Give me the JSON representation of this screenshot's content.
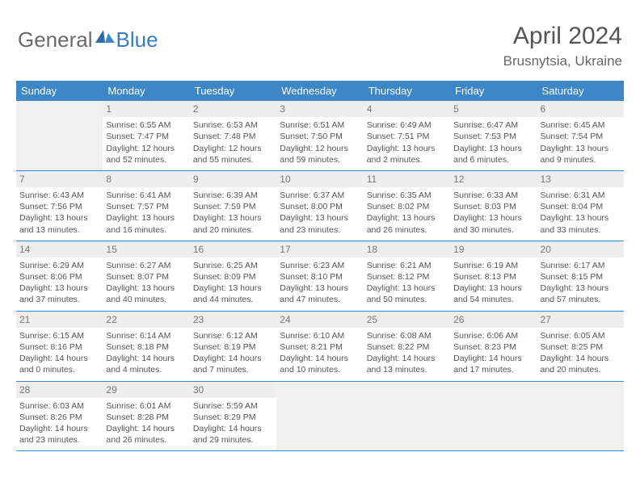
{
  "logo": {
    "general": "General",
    "blue": "Blue"
  },
  "title": "April 2024",
  "location": "Brusnytsia, Ukraine",
  "colors": {
    "header_bg": "#3d87c7",
    "header_text": "#ffffff",
    "daynum_bg": "#eeeeee",
    "empty_bg": "#f0f0f0",
    "border": "#3d87c7",
    "text": "#555555",
    "logo_general": "#6a6a6a",
    "logo_blue": "#3b7bbf"
  },
  "day_names": [
    "Sunday",
    "Monday",
    "Tuesday",
    "Wednesday",
    "Thursday",
    "Friday",
    "Saturday"
  ],
  "weeks": [
    [
      {
        "empty": true
      },
      {
        "num": "1",
        "sunrise": "Sunrise: 6:55 AM",
        "sunset": "Sunset: 7:47 PM",
        "day1": "Daylight: 12 hours",
        "day2": "and 52 minutes."
      },
      {
        "num": "2",
        "sunrise": "Sunrise: 6:53 AM",
        "sunset": "Sunset: 7:48 PM",
        "day1": "Daylight: 12 hours",
        "day2": "and 55 minutes."
      },
      {
        "num": "3",
        "sunrise": "Sunrise: 6:51 AM",
        "sunset": "Sunset: 7:50 PM",
        "day1": "Daylight: 12 hours",
        "day2": "and 59 minutes."
      },
      {
        "num": "4",
        "sunrise": "Sunrise: 6:49 AM",
        "sunset": "Sunset: 7:51 PM",
        "day1": "Daylight: 13 hours",
        "day2": "and 2 minutes."
      },
      {
        "num": "5",
        "sunrise": "Sunrise: 6:47 AM",
        "sunset": "Sunset: 7:53 PM",
        "day1": "Daylight: 13 hours",
        "day2": "and 6 minutes."
      },
      {
        "num": "6",
        "sunrise": "Sunrise: 6:45 AM",
        "sunset": "Sunset: 7:54 PM",
        "day1": "Daylight: 13 hours",
        "day2": "and 9 minutes."
      }
    ],
    [
      {
        "num": "7",
        "sunrise": "Sunrise: 6:43 AM",
        "sunset": "Sunset: 7:56 PM",
        "day1": "Daylight: 13 hours",
        "day2": "and 13 minutes."
      },
      {
        "num": "8",
        "sunrise": "Sunrise: 6:41 AM",
        "sunset": "Sunset: 7:57 PM",
        "day1": "Daylight: 13 hours",
        "day2": "and 16 minutes."
      },
      {
        "num": "9",
        "sunrise": "Sunrise: 6:39 AM",
        "sunset": "Sunset: 7:59 PM",
        "day1": "Daylight: 13 hours",
        "day2": "and 20 minutes."
      },
      {
        "num": "10",
        "sunrise": "Sunrise: 6:37 AM",
        "sunset": "Sunset: 8:00 PM",
        "day1": "Daylight: 13 hours",
        "day2": "and 23 minutes."
      },
      {
        "num": "11",
        "sunrise": "Sunrise: 6:35 AM",
        "sunset": "Sunset: 8:02 PM",
        "day1": "Daylight: 13 hours",
        "day2": "and 26 minutes."
      },
      {
        "num": "12",
        "sunrise": "Sunrise: 6:33 AM",
        "sunset": "Sunset: 8:03 PM",
        "day1": "Daylight: 13 hours",
        "day2": "and 30 minutes."
      },
      {
        "num": "13",
        "sunrise": "Sunrise: 6:31 AM",
        "sunset": "Sunset: 8:04 PM",
        "day1": "Daylight: 13 hours",
        "day2": "and 33 minutes."
      }
    ],
    [
      {
        "num": "14",
        "sunrise": "Sunrise: 6:29 AM",
        "sunset": "Sunset: 8:06 PM",
        "day1": "Daylight: 13 hours",
        "day2": "and 37 minutes."
      },
      {
        "num": "15",
        "sunrise": "Sunrise: 6:27 AM",
        "sunset": "Sunset: 8:07 PM",
        "day1": "Daylight: 13 hours",
        "day2": "and 40 minutes."
      },
      {
        "num": "16",
        "sunrise": "Sunrise: 6:25 AM",
        "sunset": "Sunset: 8:09 PM",
        "day1": "Daylight: 13 hours",
        "day2": "and 44 minutes."
      },
      {
        "num": "17",
        "sunrise": "Sunrise: 6:23 AM",
        "sunset": "Sunset: 8:10 PM",
        "day1": "Daylight: 13 hours",
        "day2": "and 47 minutes."
      },
      {
        "num": "18",
        "sunrise": "Sunrise: 6:21 AM",
        "sunset": "Sunset: 8:12 PM",
        "day1": "Daylight: 13 hours",
        "day2": "and 50 minutes."
      },
      {
        "num": "19",
        "sunrise": "Sunrise: 6:19 AM",
        "sunset": "Sunset: 8:13 PM",
        "day1": "Daylight: 13 hours",
        "day2": "and 54 minutes."
      },
      {
        "num": "20",
        "sunrise": "Sunrise: 6:17 AM",
        "sunset": "Sunset: 8:15 PM",
        "day1": "Daylight: 13 hours",
        "day2": "and 57 minutes."
      }
    ],
    [
      {
        "num": "21",
        "sunrise": "Sunrise: 6:15 AM",
        "sunset": "Sunset: 8:16 PM",
        "day1": "Daylight: 14 hours",
        "day2": "and 0 minutes."
      },
      {
        "num": "22",
        "sunrise": "Sunrise: 6:14 AM",
        "sunset": "Sunset: 8:18 PM",
        "day1": "Daylight: 14 hours",
        "day2": "and 4 minutes."
      },
      {
        "num": "23",
        "sunrise": "Sunrise: 6:12 AM",
        "sunset": "Sunset: 8:19 PM",
        "day1": "Daylight: 14 hours",
        "day2": "and 7 minutes."
      },
      {
        "num": "24",
        "sunrise": "Sunrise: 6:10 AM",
        "sunset": "Sunset: 8:21 PM",
        "day1": "Daylight: 14 hours",
        "day2": "and 10 minutes."
      },
      {
        "num": "25",
        "sunrise": "Sunrise: 6:08 AM",
        "sunset": "Sunset: 8:22 PM",
        "day1": "Daylight: 14 hours",
        "day2": "and 13 minutes."
      },
      {
        "num": "26",
        "sunrise": "Sunrise: 6:06 AM",
        "sunset": "Sunset: 8:23 PM",
        "day1": "Daylight: 14 hours",
        "day2": "and 17 minutes."
      },
      {
        "num": "27",
        "sunrise": "Sunrise: 6:05 AM",
        "sunset": "Sunset: 8:25 PM",
        "day1": "Daylight: 14 hours",
        "day2": "and 20 minutes."
      }
    ],
    [
      {
        "num": "28",
        "sunrise": "Sunrise: 6:03 AM",
        "sunset": "Sunset: 8:26 PM",
        "day1": "Daylight: 14 hours",
        "day2": "and 23 minutes."
      },
      {
        "num": "29",
        "sunrise": "Sunrise: 6:01 AM",
        "sunset": "Sunset: 8:28 PM",
        "day1": "Daylight: 14 hours",
        "day2": "and 26 minutes."
      },
      {
        "num": "30",
        "sunrise": "Sunrise: 5:59 AM",
        "sunset": "Sunset: 8:29 PM",
        "day1": "Daylight: 14 hours",
        "day2": "and 29 minutes."
      },
      {
        "empty": true
      },
      {
        "empty": true
      },
      {
        "empty": true
      },
      {
        "empty": true
      }
    ]
  ]
}
